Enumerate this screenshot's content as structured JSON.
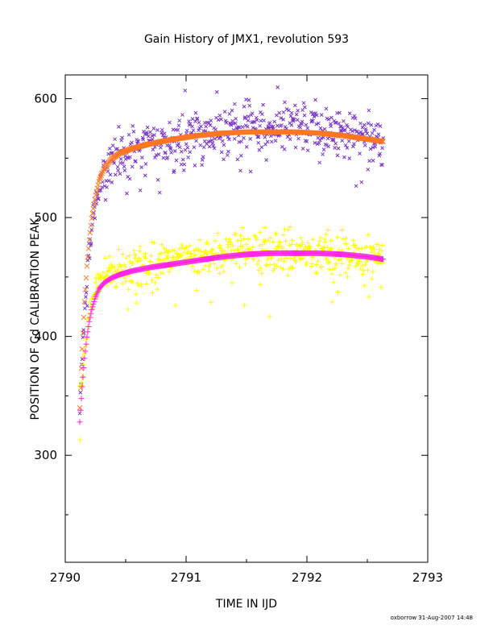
{
  "chart_data": {
    "type": "scatter",
    "title": "Gain History of JMX1, revolution 593",
    "xlabel": "TIME IN IJD",
    "ylabel": "POSITION OF Cd CALIBRATION PEAK",
    "xlim": [
      2790,
      2793
    ],
    "ylim": [
      210,
      620
    ],
    "xticks": [
      2790,
      2791,
      2792,
      2793
    ],
    "yticks": [
      300,
      400,
      500,
      600
    ],
    "grid": false,
    "series": [
      {
        "marker": "x",
        "color": "#7733cc",
        "x_range": [
          2790.12,
          2792.63
        ],
        "anchor_x": [
          2790.12,
          2790.16,
          2790.2,
          2790.25,
          2790.3,
          2790.4,
          2790.6,
          2790.8,
          2791.0,
          2791.2,
          2791.4,
          2791.6,
          2791.8,
          2792.0,
          2792.2,
          2792.4,
          2792.63
        ],
        "anchor_y": [
          340,
          420,
          480,
          510,
          530,
          548,
          558,
          563,
          567,
          571,
          574,
          576,
          575,
          574,
          572,
          568,
          565
        ],
        "scatter": 14,
        "count": 560
      },
      {
        "marker": "x-fit",
        "color": "#ff7722",
        "x": [
          2790.12,
          2790.14,
          2790.16,
          2790.18,
          2790.2,
          2790.22,
          2790.25,
          2790.28,
          2790.32,
          2790.38,
          2790.45,
          2790.55,
          2790.7,
          2790.9,
          2791.1,
          2791.3,
          2791.5,
          2791.7,
          2791.9,
          2792.1,
          2792.3,
          2792.5,
          2792.63
        ],
        "y": [
          340,
          390,
          430,
          460,
          482,
          500,
          518,
          531,
          541,
          549,
          554,
          558,
          562,
          566,
          569,
          571,
          572,
          572,
          572,
          571,
          569,
          566,
          564
        ]
      },
      {
        "marker": "+",
        "color": "#ffff00",
        "x_range": [
          2790.12,
          2792.63
        ],
        "anchor_x": [
          2790.12,
          2790.16,
          2790.2,
          2790.25,
          2790.3,
          2790.4,
          2790.6,
          2790.8,
          2791.0,
          2791.2,
          2791.4,
          2791.6,
          2791.8,
          2792.0,
          2792.2,
          2792.4,
          2792.63
        ],
        "anchor_y": [
          345,
          385,
          420,
          440,
          450,
          455,
          458,
          462,
          465,
          468,
          472,
          474,
          472,
          471,
          469,
          467,
          466
        ],
        "scatter": 11,
        "count": 600
      },
      {
        "marker": "+-fit",
        "color": "#ff22ee",
        "x": [
          2790.12,
          2790.14,
          2790.16,
          2790.18,
          2790.2,
          2790.22,
          2790.25,
          2790.28,
          2790.32,
          2790.38,
          2790.45,
          2790.55,
          2790.7,
          2790.9,
          2791.1,
          2791.3,
          2791.5,
          2791.7,
          2791.9,
          2792.1,
          2792.3,
          2792.5,
          2792.63
        ],
        "y": [
          328,
          358,
          382,
          400,
          413,
          423,
          433,
          440,
          445,
          449,
          452,
          455,
          458,
          461,
          464,
          467,
          469,
          470,
          470,
          470,
          469,
          467,
          465
        ]
      }
    ]
  },
  "footer": "oxborrow 31-Aug-2007 14:48"
}
